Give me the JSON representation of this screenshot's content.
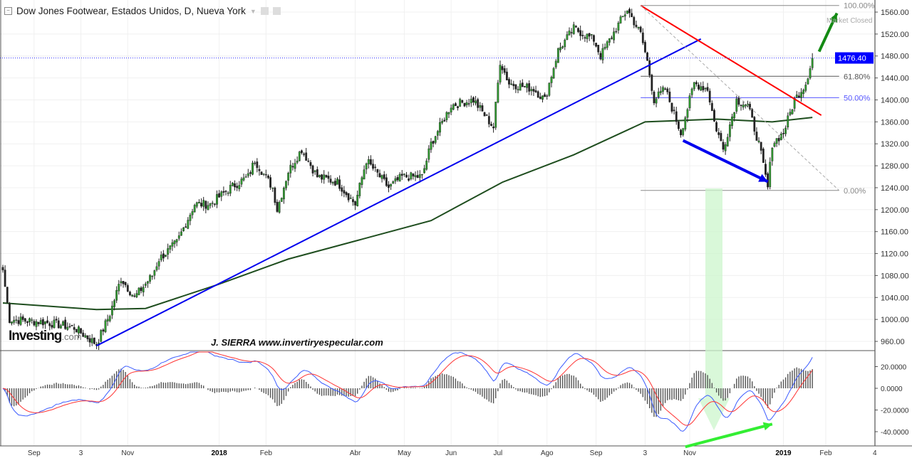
{
  "header": {
    "title": "Dow Jones Footwear, Estados Unidos, D, Nueva York",
    "market_status": "Market Closed"
  },
  "watermark": {
    "logo": "Investing",
    "logo_suffix": ".com",
    "author": "J. SIERRA  www.invertiryespecular.com"
  },
  "chart_data": {
    "type": "candlestick",
    "title": "Dow Jones Footwear, Estados Unidos, D, Nueva York",
    "price_axis": {
      "ticks": [
        1560,
        1520,
        1480,
        1440,
        1400,
        1360,
        1320,
        1280,
        1240,
        1200,
        1160,
        1120,
        1080,
        1040,
        1000,
        960
      ],
      "labels": [
        "1560.00",
        "1520.00",
        "1480.00",
        "1440.00",
        "1400.00",
        "1360.00",
        "1320.00",
        "1280.00",
        "1240.00",
        "1200.00",
        "1160.00",
        "1120.00",
        "1080.00",
        "1040.00",
        "1000.00",
        "960.00"
      ],
      "ylim": [
        945,
        1575
      ]
    },
    "last_price": {
      "value": 1476.4,
      "label": "1476.40",
      "color": "#0000ff"
    },
    "time_axis": {
      "labels": [
        "Sep",
        "3",
        "Nov",
        "2018",
        "Feb",
        "Abr",
        "May",
        "Jun",
        "Jul",
        "Ago",
        "Sep",
        "3",
        "Nov",
        "2019",
        "Feb",
        "4"
      ],
      "bar_index": [
        14,
        35,
        56,
        97,
        118,
        158,
        180,
        201,
        222,
        244,
        266,
        288,
        308,
        350,
        369,
        391
      ]
    },
    "close_path": [
      [
        0,
        1090
      ],
      [
        3,
        1000
      ],
      [
        19,
        995
      ],
      [
        32,
        985
      ],
      [
        42,
        955
      ],
      [
        48,
        1010
      ],
      [
        53,
        1075
      ],
      [
        59,
        1040
      ],
      [
        67,
        1080
      ],
      [
        70,
        1110
      ],
      [
        78,
        1140
      ],
      [
        86,
        1210
      ],
      [
        93,
        1210
      ],
      [
        96,
        1220
      ],
      [
        102,
        1240
      ],
      [
        110,
        1260
      ],
      [
        113,
        1290
      ],
      [
        121,
        1240
      ],
      [
        123,
        1200
      ],
      [
        128,
        1270
      ],
      [
        134,
        1310
      ],
      [
        141,
        1260
      ],
      [
        150,
        1250
      ],
      [
        158,
        1210
      ],
      [
        163,
        1290
      ],
      [
        173,
        1240
      ],
      [
        179,
        1260
      ],
      [
        188,
        1260
      ],
      [
        192,
        1320
      ],
      [
        201,
        1390
      ],
      [
        211,
        1400
      ],
      [
        220,
        1350
      ],
      [
        223,
        1470
      ],
      [
        227,
        1430
      ],
      [
        238,
        1420
      ],
      [
        243,
        1400
      ],
      [
        249,
        1490
      ],
      [
        256,
        1530
      ],
      [
        265,
        1510
      ],
      [
        268,
        1480
      ],
      [
        275,
        1530
      ],
      [
        280,
        1565
      ],
      [
        286,
        1520
      ],
      [
        289,
        1470
      ],
      [
        292,
        1400
      ],
      [
        297,
        1420
      ],
      [
        304,
        1340
      ],
      [
        310,
        1430
      ],
      [
        316,
        1420
      ],
      [
        319,
        1360
      ],
      [
        323,
        1310
      ],
      [
        329,
        1400
      ],
      [
        334,
        1390
      ],
      [
        339,
        1320
      ],
      [
        343,
        1240
      ],
      [
        345,
        1320
      ],
      [
        350,
        1340
      ],
      [
        355,
        1400
      ],
      [
        360,
        1430
      ],
      [
        363,
        1476.4
      ]
    ],
    "ma200": [
      [
        0,
        1030
      ],
      [
        42,
        1018
      ],
      [
        64,
        1020
      ],
      [
        96,
        1063
      ],
      [
        128,
        1110
      ],
      [
        160,
        1145
      ],
      [
        192,
        1180
      ],
      [
        224,
        1250
      ],
      [
        256,
        1300
      ],
      [
        288,
        1360
      ],
      [
        320,
        1365
      ],
      [
        345,
        1360
      ],
      [
        363,
        1368
      ]
    ],
    "trendlines": [
      {
        "name": "support",
        "color": "#0000ee",
        "from": [
          42,
          952
        ],
        "to": [
          313,
          1511
        ]
      },
      {
        "name": "resistance",
        "color": "#ff0000",
        "from": [
          286,
          1572
        ],
        "to": [
          367,
          1372
        ]
      },
      {
        "name": "fib-diagonal",
        "color": "#aaaaaa",
        "from": [
          286,
          1572
        ],
        "to": [
          375,
          1235
        ]
      }
    ],
    "fibonacci": [
      {
        "level": "100.00%",
        "price": 1572,
        "color": "#888888"
      },
      {
        "level": "61.80%",
        "price": 1443,
        "color": "#555555"
      },
      {
        "level": "50.00%",
        "price": 1404,
        "color": "#5555ff"
      },
      {
        "level": "0.00%",
        "price": 1235,
        "color": "#888888"
      }
    ],
    "arrows": [
      {
        "panel": "price",
        "color": "#0000ee",
        "from": [
          305,
          1326
        ],
        "to": [
          343,
          1251
        ]
      },
      {
        "panel": "price",
        "color": "#138a13",
        "from": [
          366,
          1488
        ],
        "to": [
          374,
          1558
        ]
      },
      {
        "panel": "macd",
        "color": "#33ee33",
        "from": [
          306,
          -54
        ],
        "to": [
          345,
          -33
        ]
      }
    ],
    "macd": {
      "ticks": [
        20,
        0,
        -20,
        -40
      ],
      "labels": [
        "20.0000",
        "0.0000",
        "-20.0000",
        "-40.0000"
      ],
      "ylim": [
        -52,
        32
      ],
      "macd_color": "#3b5bff",
      "signal_color": "#ff3333",
      "hist_color": "#555555"
    }
  }
}
